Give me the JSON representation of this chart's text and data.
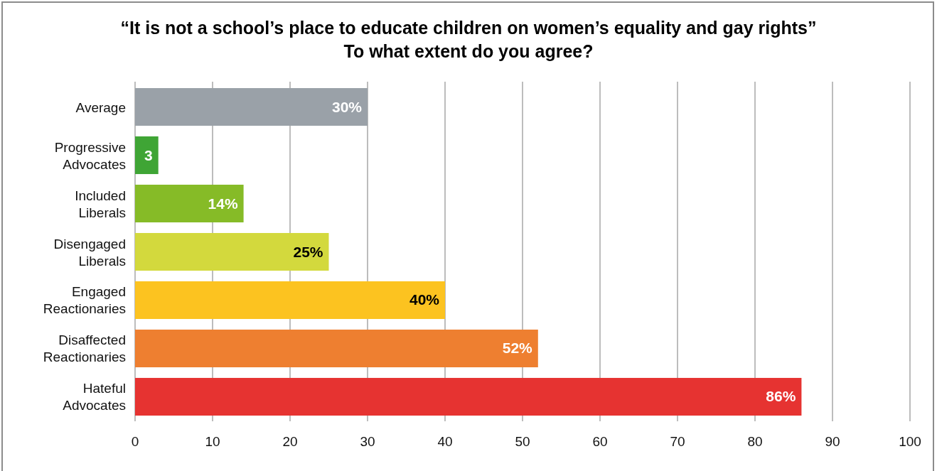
{
  "chart_data": {
    "type": "bar",
    "orientation": "horizontal",
    "title": "“It is not a school’s place to educate children on women’s equality and gay rights”\nTo what extent do you agree?",
    "categories": [
      "Average",
      "Progressive Advocates",
      "Included Liberals",
      "Disengaged Liberals",
      "Engaged Reactionaries",
      "Disaffected Reactionaries",
      "Hateful Advocates"
    ],
    "values": [
      30,
      3,
      14,
      25,
      40,
      52,
      86
    ],
    "colors": [
      "#9aa1a8",
      "#3fa535",
      "#86bb27",
      "#d3d93d",
      "#fcc320",
      "#ee7f30",
      "#e63331"
    ],
    "value_labels": [
      "30%",
      "3",
      "14%",
      "25%",
      "40%",
      "52%",
      "86%"
    ],
    "xlim": [
      0,
      100
    ],
    "xticks": [
      0,
      10,
      20,
      30,
      40,
      50,
      60,
      70,
      80,
      90,
      100
    ],
    "grid": "x"
  }
}
